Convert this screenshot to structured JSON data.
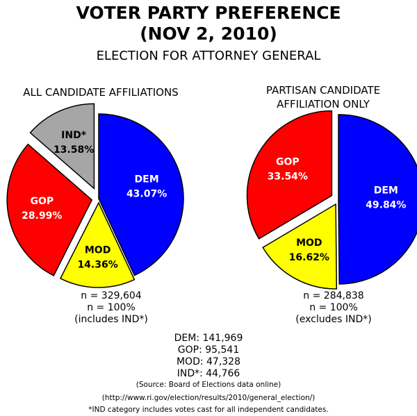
{
  "header": {
    "title_line1": "VOTER PARTY PREFERENCE",
    "title_line2": "(NOV 2, 2010)",
    "subtitle": "ELECTION FOR ATTORNEY GENERAL"
  },
  "chart_data": [
    {
      "type": "pie",
      "title": "ALL CANDIDATE AFFILIATIONS",
      "slices": [
        {
          "label": "DEM",
          "value": 43.07,
          "value_label": "43.07%",
          "color": "#0000ff",
          "text_color": "#ffffff"
        },
        {
          "label": "MOD",
          "value": 14.36,
          "value_label": "14.36%",
          "color": "#ffff00",
          "text_color": "#000000"
        },
        {
          "label": "GOP",
          "value": 28.99,
          "value_label": "28.99%",
          "color": "#ff0000",
          "text_color": "#ffffff"
        },
        {
          "label": "IND*",
          "value": 13.58,
          "value_label": "13.58%",
          "color": "#a6a6a6",
          "text_color": "#000000"
        }
      ],
      "note_lines": [
        "n = 329,604",
        "n = 100%",
        "(includes IND*)"
      ]
    },
    {
      "type": "pie",
      "title_lines": [
        "PARTISAN CANDIDATE",
        "AFFILIATION ONLY"
      ],
      "slices": [
        {
          "label": "DEM",
          "value": 49.84,
          "value_label": "49.84%",
          "color": "#0000ff",
          "text_color": "#ffffff"
        },
        {
          "label": "MOD",
          "value": 16.62,
          "value_label": "16.62%",
          "color": "#ffff00",
          "text_color": "#000000"
        },
        {
          "label": "GOP",
          "value": 33.54,
          "value_label": "33.54%",
          "color": "#ff0000",
          "text_color": "#ffffff"
        }
      ],
      "note_lines": [
        "n = 284,838",
        "n = 100%",
        "(excludes IND*)"
      ]
    }
  ],
  "totals": [
    "DEM: 141,969",
    "GOP: 95,541",
    "MOD: 47,328",
    "IND*: 44,766"
  ],
  "footer": {
    "source": "(Source: Board of Elections data online)",
    "url": "(http://www.ri.gov/election/results/2010/general_election/)",
    "footnote": "*IND category includes votes cast for all independent candidates."
  }
}
